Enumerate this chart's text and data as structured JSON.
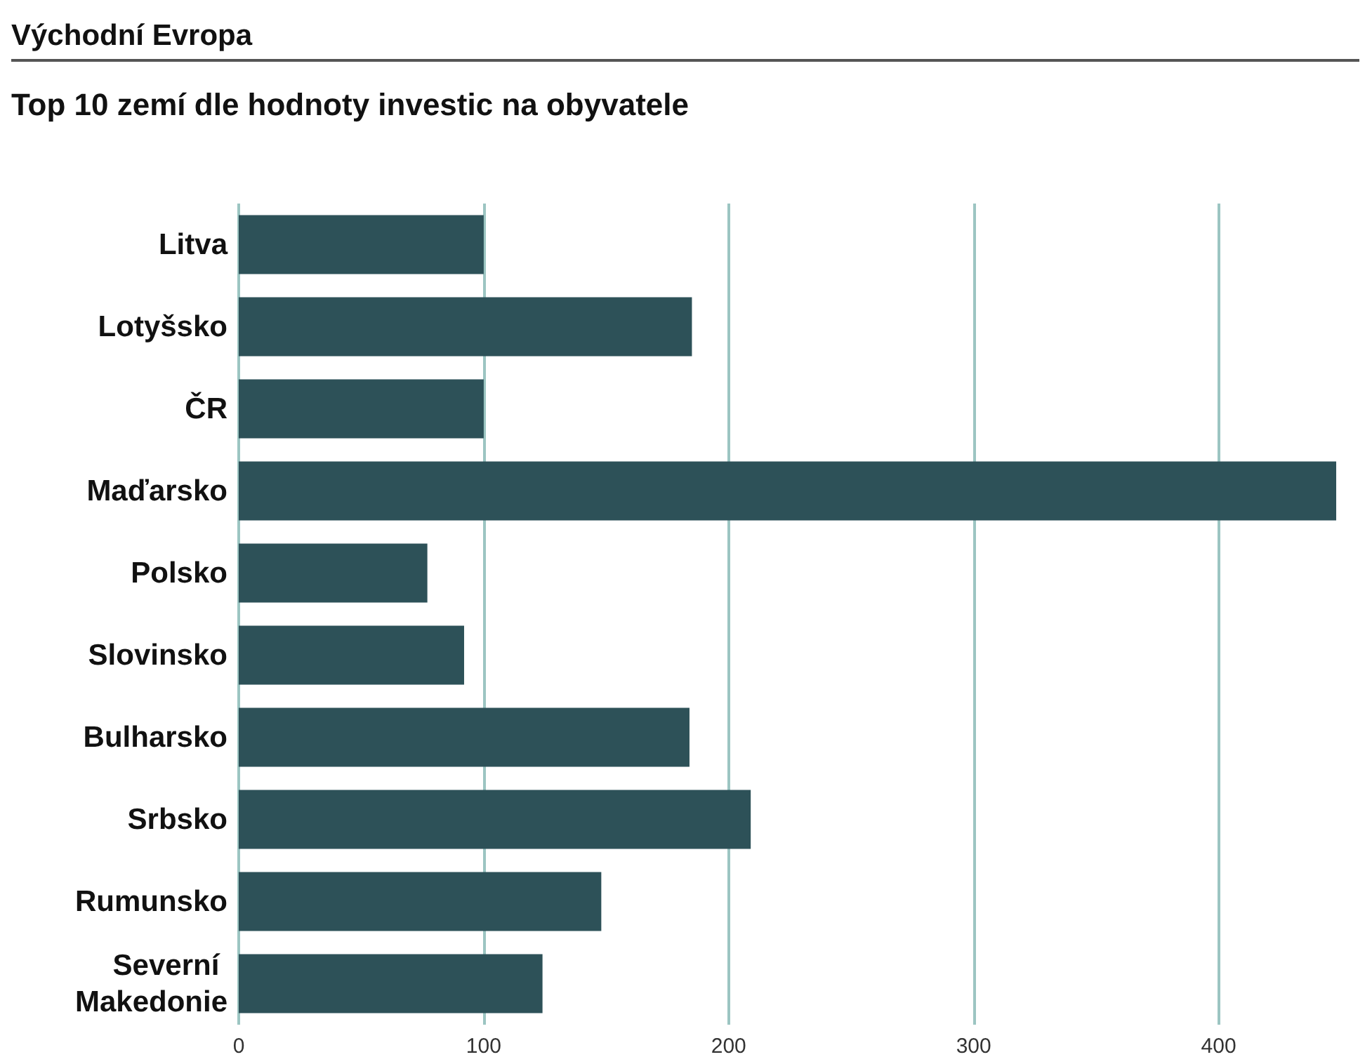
{
  "chart_data": {
    "type": "bar",
    "title": "Východní Evropa",
    "subtitle": "Top 10 zemí dle hodnoty investic na obyvatele",
    "orientation": "horizontal",
    "categories": [
      "Litva",
      "Lotyšsko",
      "ČR",
      "Maďarsko",
      "Polsko",
      "Slovinsko",
      "Bulharsko",
      "Srbsko",
      "Rumunsko",
      "Severní Makedonie"
    ],
    "series": [
      {
        "color": "#2d5158",
        "values": [
          100,
          185,
          100,
          448,
          77,
          92,
          184,
          209,
          148,
          124
        ]
      }
    ],
    "xlim": [
      0,
      450
    ],
    "xticks": [
      0,
      100,
      200,
      300,
      400
    ],
    "grid": "x"
  }
}
